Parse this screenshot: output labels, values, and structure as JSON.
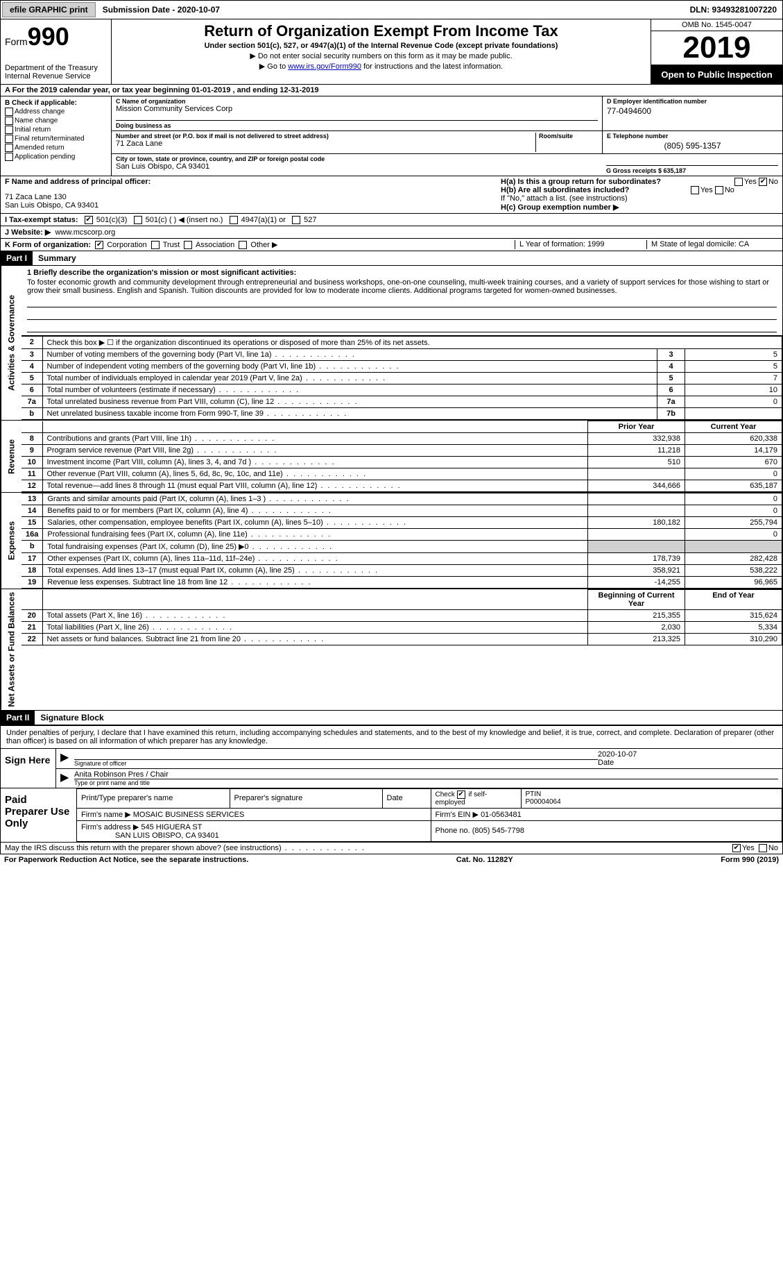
{
  "topbar": {
    "efile_label": "efile GRAPHIC print",
    "submission_label": "Submission Date - 2020-10-07",
    "dln_label": "DLN: 93493281007220"
  },
  "header": {
    "form_word": "Form",
    "form_num": "990",
    "dept": "Department of the Treasury\nInternal Revenue Service",
    "title": "Return of Organization Exempt From Income Tax",
    "subtitle": "Under section 501(c), 527, or 4947(a)(1) of the Internal Revenue Code (except private foundations)",
    "note1": "▶ Do not enter social security numbers on this form as it may be made public.",
    "note2_pre": "▶ Go to ",
    "note2_link": "www.irs.gov/Form990",
    "note2_post": " for instructions and the latest information.",
    "omb": "OMB No. 1545-0047",
    "year": "2019",
    "open": "Open to Public Inspection"
  },
  "period": "A For the 2019 calendar year, or tax year beginning 01-01-2019   , and ending 12-31-2019",
  "box_b": {
    "title": "B Check if applicable:",
    "items": [
      "Address change",
      "Name change",
      "Initial return",
      "Final return/terminated",
      "Amended return",
      "Application pending"
    ]
  },
  "box_c": {
    "name_lbl": "C Name of organization",
    "name": "Mission Community Services Corp",
    "dba_lbl": "Doing business as",
    "dba": "",
    "addr_lbl": "Number and street (or P.O. box if mail is not delivered to street address)",
    "room_lbl": "Room/suite",
    "addr": "71 Zaca Lane",
    "city_lbl": "City or town, state or province, country, and ZIP or foreign postal code",
    "city": "San Luis Obispo, CA  93401"
  },
  "box_d": {
    "ein_lbl": "D Employer identification number",
    "ein": "77-0494600",
    "phone_lbl": "E Telephone number",
    "phone": "(805) 595-1357",
    "gross_lbl": "G Gross receipts $ 635,187"
  },
  "box_f": {
    "lbl": "F  Name and address of principal officer:",
    "addr1": "71 Zaca Lane 130",
    "addr2": "San Luis Obispo, CA  93401"
  },
  "box_h": {
    "ha": "H(a)  Is this a group return for subordinates?",
    "hb": "H(b)  Are all subordinates included?",
    "hb_note": "If \"No,\" attach a list. (see instructions)",
    "hc": "H(c)  Group exemption number ▶"
  },
  "box_i": {
    "lbl": "I  Tax-exempt status:",
    "opts": [
      "501(c)(3)",
      "501(c) (  ) ◀ (insert no.)",
      "4947(a)(1) or",
      "527"
    ]
  },
  "box_j": {
    "lbl": "J  Website: ▶",
    "val": "www.mcscorp.org"
  },
  "box_k": {
    "lbl": "K Form of organization:",
    "opts": [
      "Corporation",
      "Trust",
      "Association",
      "Other ▶"
    ]
  },
  "box_l": "L Year of formation: 1999",
  "box_m": "M State of legal domicile: CA",
  "part1": {
    "hdr": "Part I",
    "title": "Summary",
    "line1_lbl": "1  Briefly describe the organization's mission or most significant activities:",
    "mission": "To foster economic growth and community development through entrepreneurial and business workshops, one-on-one counseling, multi-week training courses, and a variety of support services for those wishing to start or grow their small business. English and Spanish. Tuition discounts are provided for low to moderate income clients. Additional programs targeted for women-owned businesses.",
    "tabs": {
      "gov": "Activities & Governance",
      "rev": "Revenue",
      "exp": "Expenses",
      "net": "Net Assets or Fund Balances"
    },
    "gov_rows": [
      {
        "n": "2",
        "desc": "Check this box ▶ ☐  if the organization discontinued its operations or disposed of more than 25% of its net assets.",
        "ref": "",
        "val": ""
      },
      {
        "n": "3",
        "desc": "Number of voting members of the governing body (Part VI, line 1a)",
        "ref": "3",
        "val": "5"
      },
      {
        "n": "4",
        "desc": "Number of independent voting members of the governing body (Part VI, line 1b)",
        "ref": "4",
        "val": "5"
      },
      {
        "n": "5",
        "desc": "Total number of individuals employed in calendar year 2019 (Part V, line 2a)",
        "ref": "5",
        "val": "7"
      },
      {
        "n": "6",
        "desc": "Total number of volunteers (estimate if necessary)",
        "ref": "6",
        "val": "10"
      },
      {
        "n": "7a",
        "desc": "Total unrelated business revenue from Part VIII, column (C), line 12",
        "ref": "7a",
        "val": "0"
      },
      {
        "n": "b",
        "desc": "Net unrelated business taxable income from Form 990-T, line 39",
        "ref": "7b",
        "val": ""
      }
    ],
    "col_hdrs": {
      "py": "Prior Year",
      "cy": "Current Year",
      "by": "Beginning of Current Year",
      "ey": "End of Year"
    },
    "rev_rows": [
      {
        "n": "8",
        "desc": "Contributions and grants (Part VIII, line 1h)",
        "py": "332,938",
        "cy": "620,338"
      },
      {
        "n": "9",
        "desc": "Program service revenue (Part VIII, line 2g)",
        "py": "11,218",
        "cy": "14,179"
      },
      {
        "n": "10",
        "desc": "Investment income (Part VIII, column (A), lines 3, 4, and 7d )",
        "py": "510",
        "cy": "670"
      },
      {
        "n": "11",
        "desc": "Other revenue (Part VIII, column (A), lines 5, 6d, 8c, 9c, 10c, and 11e)",
        "py": "",
        "cy": "0"
      },
      {
        "n": "12",
        "desc": "Total revenue—add lines 8 through 11 (must equal Part VIII, column (A), line 12)",
        "py": "344,666",
        "cy": "635,187"
      }
    ],
    "exp_rows": [
      {
        "n": "13",
        "desc": "Grants and similar amounts paid (Part IX, column (A), lines 1–3 )",
        "py": "",
        "cy": "0"
      },
      {
        "n": "14",
        "desc": "Benefits paid to or for members (Part IX, column (A), line 4)",
        "py": "",
        "cy": "0"
      },
      {
        "n": "15",
        "desc": "Salaries, other compensation, employee benefits (Part IX, column (A), lines 5–10)",
        "py": "180,182",
        "cy": "255,794"
      },
      {
        "n": "16a",
        "desc": "Professional fundraising fees (Part IX, column (A), line 11e)",
        "py": "",
        "cy": "0"
      },
      {
        "n": "b",
        "desc": "Total fundraising expenses (Part IX, column (D), line 25) ▶0",
        "py": "",
        "cy": "",
        "shade": true
      },
      {
        "n": "17",
        "desc": "Other expenses (Part IX, column (A), lines 11a–11d, 11f–24e)",
        "py": "178,739",
        "cy": "282,428"
      },
      {
        "n": "18",
        "desc": "Total expenses. Add lines 13–17 (must equal Part IX, column (A), line 25)",
        "py": "358,921",
        "cy": "538,222"
      },
      {
        "n": "19",
        "desc": "Revenue less expenses. Subtract line 18 from line 12",
        "py": "-14,255",
        "cy": "96,965"
      }
    ],
    "net_rows": [
      {
        "n": "20",
        "desc": "Total assets (Part X, line 16)",
        "py": "215,355",
        "cy": "315,624"
      },
      {
        "n": "21",
        "desc": "Total liabilities (Part X, line 26)",
        "py": "2,030",
        "cy": "5,334"
      },
      {
        "n": "22",
        "desc": "Net assets or fund balances. Subtract line 21 from line 20",
        "py": "213,325",
        "cy": "310,290"
      }
    ]
  },
  "part2": {
    "hdr": "Part II",
    "title": "Signature Block",
    "perjury": "Under penalties of perjury, I declare that I have examined this return, including accompanying schedules and statements, and to the best of my knowledge and belief, it is true, correct, and complete. Declaration of preparer (other than officer) is based on all information of which preparer has any knowledge.",
    "sign_here": "Sign Here",
    "sig_officer_lbl": "Signature of officer",
    "date_lbl": "Date",
    "sig_date": "2020-10-07",
    "name_title": "Anita Robinson Pres / Chair",
    "name_title_lbl": "Type or print name and title",
    "prep_hdr": "Paid Preparer Use Only",
    "prep_name_lbl": "Print/Type preparer's name",
    "prep_sig_lbl": "Preparer's signature",
    "prep_date_lbl": "Date",
    "prep_check_lbl": "Check ☑ if self-employed",
    "ptin_lbl": "PTIN",
    "ptin": "P00004064",
    "firm_name_lbl": "Firm's name   ▶",
    "firm_name": "MOSAIC BUSINESS SERVICES",
    "firm_ein_lbl": "Firm's EIN ▶",
    "firm_ein": "01-0563481",
    "firm_addr_lbl": "Firm's address ▶",
    "firm_addr1": "545 HIGUERA ST",
    "firm_addr2": "SAN LUIS OBISPO, CA  93401",
    "firm_phone_lbl": "Phone no.",
    "firm_phone": "(805) 545-7798",
    "discuss": "May the IRS discuss this return with the preparer shown above? (see instructions)",
    "yes": "Yes",
    "no": "No"
  },
  "footer": {
    "paperwork": "For Paperwork Reduction Act Notice, see the separate instructions.",
    "cat": "Cat. No. 11282Y",
    "form": "Form 990 (2019)"
  },
  "colors": {
    "link": "#0000cc",
    "black": "#000000",
    "shade": "#d0d0d0"
  }
}
